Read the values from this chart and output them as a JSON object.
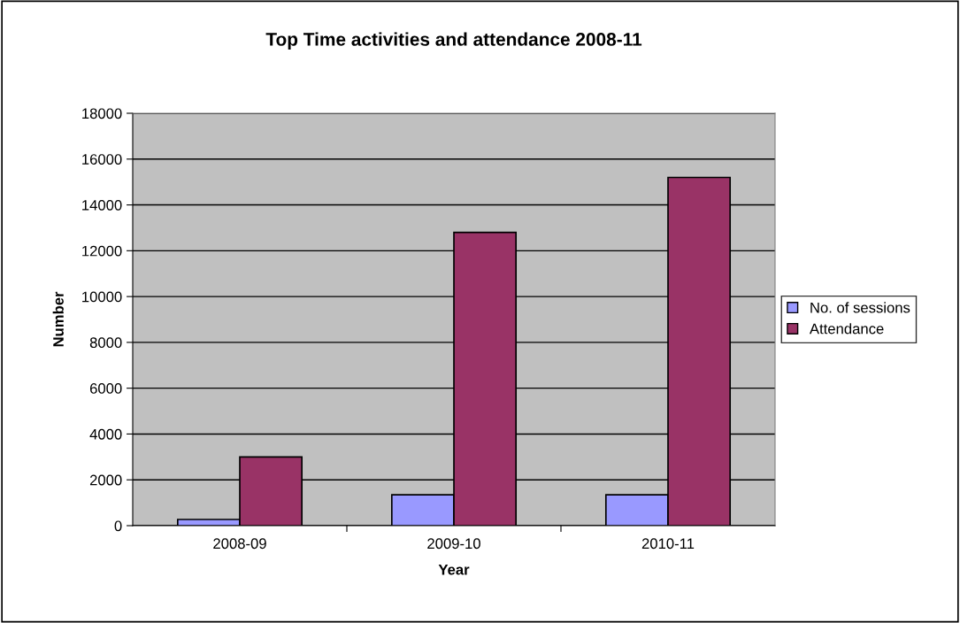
{
  "chart_data": {
    "type": "bar",
    "title": "Top Time activities and attendance 2008-11",
    "xlabel": "Year",
    "ylabel": "Number",
    "categories": [
      "2008-09",
      "2009-10",
      "2010-11"
    ],
    "series": [
      {
        "name": "No. of sessions",
        "color": "#9999ff",
        "values": [
          270,
          1350,
          1350
        ]
      },
      {
        "name": "Attendance",
        "color": "#993366",
        "values": [
          3000,
          12800,
          15200
        ]
      }
    ],
    "ylim": [
      0,
      18000
    ],
    "yticks": [
      0,
      2000,
      4000,
      6000,
      8000,
      10000,
      12000,
      14000,
      16000,
      18000
    ],
    "grid": "y",
    "legend": "right"
  }
}
